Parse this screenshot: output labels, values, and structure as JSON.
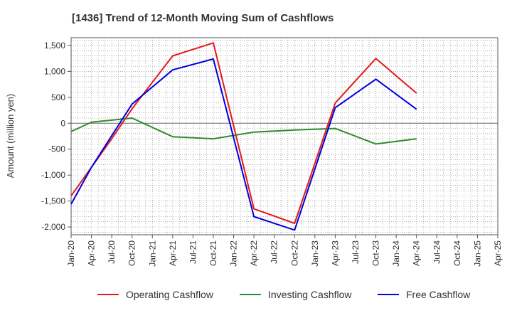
{
  "chart_data": {
    "type": "line",
    "title": "[1436]  Trend of 12-Month Moving Sum of Cashflows",
    "xlabel": "",
    "ylabel": "Amount (million yen)",
    "categories": [
      "Jan-20",
      "Apr-20",
      "Jul-20",
      "Oct-20",
      "Jan-21",
      "Apr-21",
      "Jul-21",
      "Oct-21",
      "Jan-22",
      "Apr-22",
      "Jul-22",
      "Oct-22",
      "Jan-23",
      "Apr-23",
      "Jul-23",
      "Oct-23",
      "Jan-24",
      "Apr-24",
      "Jul-24",
      "Oct-24",
      "Jan-25",
      "Apr-25"
    ],
    "ylim": [
      -2150,
      1650
    ],
    "yticks": [
      1500,
      1000,
      500,
      0,
      -500,
      -1000,
      -1500,
      -2000
    ],
    "ytick_labels": [
      "1,500",
      "1,000",
      "500",
      "0",
      "-500",
      "-1,000",
      "-1,500",
      "-2,000"
    ],
    "grid": true,
    "legend_position": "bottom",
    "series": [
      {
        "name": "Operating Cashflow",
        "color": "#e31a1c",
        "values": [
          -1400,
          -850,
          -300,
          280,
          null,
          1300,
          null,
          1550,
          null,
          -1650,
          null,
          -1930,
          null,
          390,
          null,
          1250,
          null,
          580,
          null,
          null,
          null,
          null
        ]
      },
      {
        "name": "Investing Cashflow",
        "color": "#2e8b2e",
        "values": [
          -160,
          20,
          null,
          100,
          null,
          -260,
          null,
          -300,
          null,
          -170,
          null,
          -130,
          null,
          -100,
          null,
          -400,
          null,
          -300,
          null,
          null,
          null,
          null
        ]
      },
      {
        "name": "Free Cashflow",
        "color": "#0000dd",
        "values": [
          -1560,
          -850,
          null,
          370,
          null,
          1030,
          null,
          1240,
          null,
          -1800,
          null,
          -2060,
          null,
          300,
          null,
          850,
          null,
          270,
          null,
          null,
          null,
          null
        ]
      }
    ]
  }
}
